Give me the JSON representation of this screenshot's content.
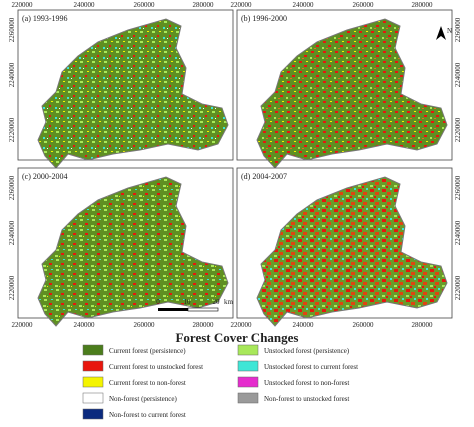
{
  "panels": [
    {
      "label": "(a) 1993-1996"
    },
    {
      "label": "(b) 1996-2000"
    },
    {
      "label": "(c) 2000-2004"
    },
    {
      "label": "(d) 2004-2007"
    }
  ],
  "x_ticks": [
    "220000",
    "240000",
    "260000",
    "280000"
  ],
  "y_ticks": [
    "2260000",
    "2240000",
    "2220000"
  ],
  "scale_bar": {
    "labels": [
      "0",
      "10",
      "20"
    ],
    "unit": "km"
  },
  "north": "N",
  "legend": {
    "title": "Forest Cover Changes",
    "items": [
      {
        "label": "Current forest (persistence)",
        "color": "#4b7d1c"
      },
      {
        "label": "Current forest to unstocked forest",
        "color": "#e8160d"
      },
      {
        "label": "Current forest to non-forest",
        "color": "#f4f400"
      },
      {
        "label": "Non-forest (persistence)",
        "color": "#ffffff"
      },
      {
        "label": "Non-forest to current forest",
        "color": "#0b2a7e"
      },
      {
        "label": "Unstocked forest (persistence)",
        "color": "#a8e85a"
      },
      {
        "label": "Unstocked forest to current forest",
        "color": "#3fe6d6"
      },
      {
        "label": "Unstocked forest to non-forest",
        "color": "#e52ccd"
      },
      {
        "label": "Non-forest to unstocked forest",
        "color": "#9a9a9a"
      }
    ]
  }
}
